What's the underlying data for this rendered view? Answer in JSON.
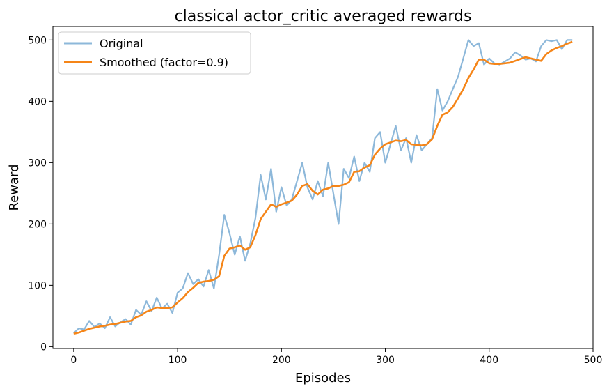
{
  "chart_data": {
    "type": "line",
    "title": "classical actor_critic averaged rewards",
    "xlabel": "Episodes",
    "ylabel": "Reward",
    "xlim": [
      -20,
      500
    ],
    "ylim": [
      -3,
      522
    ],
    "xticks": [
      0,
      100,
      200,
      300,
      400,
      500
    ],
    "yticks": [
      0,
      100,
      200,
      300,
      400,
      500
    ],
    "xtick_labels": [
      "0",
      "100",
      "200",
      "300",
      "400",
      "500"
    ],
    "ytick_labels": [
      "0",
      "100",
      "200",
      "300",
      "400",
      "500"
    ],
    "grid": false,
    "legend_position": "top-left",
    "legend": [
      "Original",
      "Smoothed (factor=0.9)"
    ],
    "series": [
      {
        "name": "Original",
        "color": "#8db8da",
        "x": [
          0,
          5,
          10,
          15,
          20,
          25,
          30,
          35,
          40,
          45,
          50,
          55,
          60,
          65,
          70,
          75,
          80,
          85,
          90,
          95,
          100,
          105,
          110,
          115,
          120,
          125,
          130,
          135,
          140,
          145,
          150,
          155,
          160,
          165,
          170,
          175,
          180,
          185,
          190,
          195,
          200,
          205,
          210,
          215,
          220,
          225,
          230,
          235,
          240,
          245,
          250,
          255,
          260,
          265,
          270,
          275,
          280,
          285,
          290,
          295,
          300,
          305,
          310,
          315,
          320,
          325,
          330,
          335,
          340,
          345,
          350,
          355,
          360,
          365,
          370,
          375,
          380,
          385,
          390,
          395,
          400,
          405,
          410,
          415,
          420,
          425,
          430,
          435,
          440,
          445,
          450,
          455,
          460,
          465,
          470,
          475,
          480
        ],
        "y": [
          22,
          30,
          28,
          42,
          32,
          38,
          30,
          48,
          33,
          40,
          45,
          36,
          60,
          52,
          74,
          58,
          80,
          62,
          70,
          55,
          88,
          95,
          120,
          102,
          110,
          98,
          125,
          95,
          150,
          215,
          185,
          150,
          180,
          140,
          168,
          210,
          280,
          240,
          290,
          220,
          260,
          230,
          240,
          270,
          300,
          260,
          240,
          270,
          245,
          300,
          250,
          200,
          290,
          275,
          310,
          270,
          300,
          285,
          340,
          350,
          300,
          330,
          360,
          320,
          340,
          300,
          345,
          320,
          330,
          340,
          420,
          385,
          400,
          420,
          440,
          470,
          500,
          490,
          495,
          460,
          470,
          462,
          460,
          465,
          470,
          480,
          475,
          468,
          470,
          465,
          490,
          500,
          498,
          500,
          485,
          500,
          500
        ]
      },
      {
        "name": "Smoothed (factor=0.9)",
        "color": "#f58518",
        "x": [
          0,
          5,
          10,
          15,
          20,
          25,
          30,
          35,
          40,
          45,
          50,
          55,
          60,
          65,
          70,
          75,
          80,
          85,
          90,
          95,
          100,
          105,
          110,
          115,
          120,
          125,
          130,
          135,
          140,
          145,
          150,
          155,
          160,
          165,
          170,
          175,
          180,
          185,
          190,
          195,
          200,
          205,
          210,
          215,
          220,
          225,
          230,
          235,
          240,
          245,
          250,
          255,
          260,
          265,
          270,
          275,
          280,
          285,
          290,
          295,
          300,
          305,
          310,
          315,
          320,
          325,
          330,
          335,
          340,
          345,
          350,
          355,
          360,
          365,
          370,
          375,
          380,
          385,
          390,
          395,
          400,
          405,
          410,
          415,
          420,
          425,
          430,
          435,
          440,
          445,
          450,
          455,
          460,
          465,
          470,
          475,
          480
        ],
        "y": [
          21,
          23,
          26,
          29,
          31,
          33,
          34,
          36,
          37,
          39,
          41,
          42,
          48,
          51,
          57,
          60,
          64,
          63,
          63,
          64,
          72,
          79,
          89,
          96,
          104,
          106,
          107,
          109,
          115,
          148,
          160,
          162,
          165,
          158,
          162,
          182,
          208,
          220,
          232,
          228,
          232,
          235,
          238,
          248,
          262,
          265,
          254,
          248,
          256,
          258,
          262,
          262,
          264,
          268,
          285,
          286,
          292,
          296,
          313,
          323,
          330,
          333,
          336,
          335,
          337,
          330,
          329,
          328,
          330,
          338,
          360,
          378,
          382,
          391,
          405,
          420,
          438,
          452,
          468,
          468,
          462,
          461,
          461,
          462,
          463,
          466,
          469,
          472,
          470,
          468,
          466,
          477,
          483,
          487,
          490,
          494,
          497
        ]
      }
    ]
  }
}
